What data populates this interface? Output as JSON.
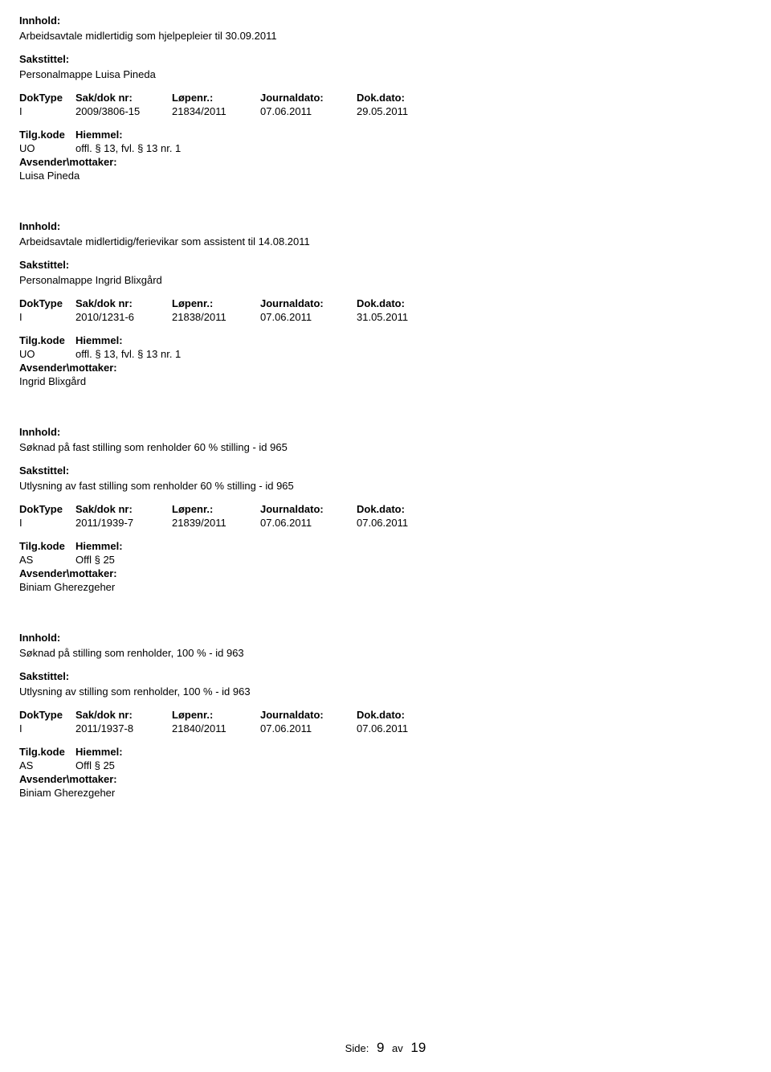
{
  "labels": {
    "innhold": "Innhold:",
    "sakstittel": "Sakstittel:",
    "doktype": "DokType",
    "sakdok": "Sak/dok nr:",
    "lopenr": "Løpenr.:",
    "journaldato": "Journaldato:",
    "dokdato": "Dok.dato:",
    "tilgkode": "Tilg.kode",
    "hjemmel": "Hiemmel:",
    "avsender": "Avsender\\mottaker:"
  },
  "entries": [
    {
      "subject": "Arbeidsavtale midlertidig som hjelpepleier til 30.09.2011",
      "caseTitle": "Personalmappe Luisa Pineda",
      "doktype": "I",
      "sakdok": "2009/3806-15",
      "lopenr": "21834/2011",
      "journaldato": "07.06.2011",
      "dokdato": "29.05.2011",
      "tilgkode": "UO",
      "hjemmel": "offl. § 13, fvl. § 13 nr. 1",
      "avsender": "Luisa Pineda"
    },
    {
      "subject": "Arbeidsavtale midlertidig/ferievikar som assistent til 14.08.2011",
      "caseTitle": "Personalmappe Ingrid Blixgård",
      "doktype": "I",
      "sakdok": "2010/1231-6",
      "lopenr": "21838/2011",
      "journaldato": "07.06.2011",
      "dokdato": "31.05.2011",
      "tilgkode": "UO",
      "hjemmel": "offl. § 13, fvl. § 13 nr. 1",
      "avsender": "Ingrid Blixgård"
    },
    {
      "subject": "Søknad på fast stilling som renholder 60 % stilling - id 965",
      "caseTitle": "Utlysning av fast stilling som renholder 60 % stilling - id 965",
      "doktype": "I",
      "sakdok": "2011/1939-7",
      "lopenr": "21839/2011",
      "journaldato": "07.06.2011",
      "dokdato": "07.06.2011",
      "tilgkode": "AS",
      "hjemmel": "Offl § 25",
      "avsender": "Biniam Gherezgeher"
    },
    {
      "subject": "Søknad på  stilling som renholder, 100 % - id 963",
      "caseTitle": "Utlysning av stilling som renholder, 100 % - id 963",
      "doktype": "I",
      "sakdok": "2011/1937-8",
      "lopenr": "21840/2011",
      "journaldato": "07.06.2011",
      "dokdato": "07.06.2011",
      "tilgkode": "AS",
      "hjemmel": "Offl § 25",
      "avsender": "Biniam Gherezgeher"
    }
  ],
  "footer": {
    "sideLabel": "Side:",
    "pageNum": "9",
    "av": "av",
    "pageTotal": "19"
  }
}
